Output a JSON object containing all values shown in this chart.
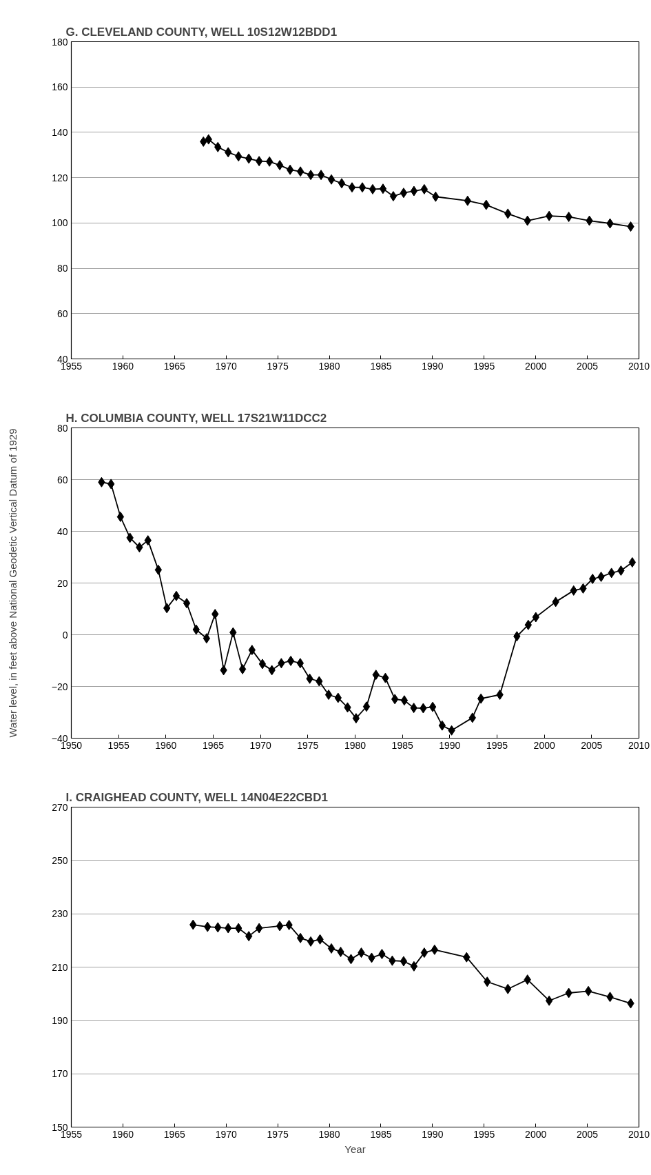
{
  "chart_data": [
    {
      "type": "line",
      "title": "G. CLEVELAND COUNTY, WELL 10S12W12BDD1",
      "marker": "diamond",
      "line_style": "solid",
      "grid": "y",
      "x": [
        1967.8,
        1968.3,
        1969.2,
        1970.2,
        1971.2,
        1972.2,
        1973.2,
        1974.2,
        1975.2,
        1976.2,
        1977.2,
        1978.2,
        1979.2,
        1980.2,
        1981.2,
        1982.2,
        1983.2,
        1984.2,
        1985.2,
        1986.2,
        1987.2,
        1988.2,
        1989.2,
        1990.3,
        1993.4,
        1995.2,
        1997.3,
        1999.2,
        2001.3,
        2003.2,
        2005.2,
        2007.2,
        2009.2
      ],
      "series": [
        {
          "color": "#000000",
          "values": [
            135.9,
            136.9,
            133.5,
            131.2,
            129.4,
            128.4,
            127.3,
            127.1,
            125.5,
            123.5,
            122.7,
            121.2,
            121.2,
            119.2,
            117.5,
            115.7,
            115.7,
            114.9,
            115.1,
            111.8,
            113.3,
            114.1,
            114.9,
            111.6,
            109.8,
            108.0,
            104.1,
            101.0,
            103.1,
            102.7,
            101.0,
            99.8,
            98.4
          ]
        }
      ],
      "xlim": [
        1955,
        2010
      ],
      "xticks": [
        1955,
        1960,
        1965,
        1970,
        1975,
        1980,
        1985,
        1990,
        1995,
        2000,
        2005,
        2010
      ],
      "ylim": [
        40,
        180
      ],
      "yticks": [
        40,
        60,
        80,
        100,
        120,
        140,
        160,
        180
      ]
    },
    {
      "type": "line",
      "title": "H. COLUMBIA COUNTY, WELL 17S21W11DCC2",
      "ylabel": "Water level, in feet above National Geodetic Vertical Datum of 1929",
      "marker": "diamond",
      "line_style": "solid",
      "grid": "y",
      "x": [
        1953.2,
        1954.2,
        1955.2,
        1956.2,
        1957.2,
        1958.1,
        1959.2,
        1960.1,
        1961.1,
        1962.2,
        1963.2,
        1964.3,
        1965.2,
        1966.1,
        1967.1,
        1968.1,
        1969.1,
        1970.2,
        1971.2,
        1972.2,
        1973.2,
        1974.2,
        1975.2,
        1976.2,
        1977.2,
        1978.2,
        1979.2,
        1980.1,
        1981.2,
        1982.2,
        1983.2,
        1984.2,
        1985.2,
        1986.2,
        1987.2,
        1988.2,
        1989.2,
        1990.2,
        1992.4,
        1993.3,
        1995.3,
        1997.1,
        1998.3,
        1999.1,
        2001.2,
        2003.1,
        2004.1,
        2005.1,
        2006.0,
        2007.1,
        2008.1,
        2009.3
      ],
      "series": [
        {
          "color": "#000000",
          "values": [
            59.0,
            58.3,
            45.6,
            37.5,
            33.8,
            36.5,
            25.1,
            10.3,
            15.0,
            12.2,
            2.0,
            -1.4,
            8.0,
            -13.7,
            0.9,
            -13.3,
            -5.9,
            -11.3,
            -13.7,
            -11.0,
            -10.1,
            -11.0,
            -17.0,
            -18.0,
            -23.2,
            -24.4,
            -28.1,
            -32.3,
            -27.8,
            -15.5,
            -16.7,
            -24.9,
            -25.4,
            -28.3,
            -28.4,
            -27.9,
            -35.1,
            -37.0,
            -32.1,
            -24.7,
            -23.2,
            -0.6,
            3.8,
            6.8,
            12.7,
            17.1,
            17.9,
            21.6,
            22.4,
            23.9,
            24.8,
            28.0
          ]
        }
      ],
      "xlim": [
        1950,
        2010
      ],
      "xticks": [
        1950,
        1955,
        1960,
        1965,
        1970,
        1975,
        1980,
        1985,
        1990,
        1995,
        2000,
        2005,
        2010
      ],
      "ylim": [
        -40,
        80
      ],
      "yticks": [
        -40,
        -20,
        0,
        20,
        40,
        60,
        80
      ]
    },
    {
      "type": "line",
      "title": "I.  CRAIGHEAD COUNTY, WELL 14N04E22CBD1",
      "xlabel": "Year",
      "marker": "diamond",
      "line_style": "solid",
      "grid": "y",
      "x": [
        1966.8,
        1968.2,
        1969.2,
        1970.2,
        1971.2,
        1972.2,
        1973.2,
        1975.2,
        1976.1,
        1977.2,
        1978.2,
        1979.1,
        1980.2,
        1981.1,
        1982.1,
        1983.1,
        1984.1,
        1985.1,
        1986.1,
        1987.2,
        1988.2,
        1989.2,
        1990.2,
        1993.3,
        1995.3,
        1997.3,
        1999.2,
        2001.3,
        2003.2,
        2005.1,
        2007.2,
        2009.2
      ],
      "series": [
        {
          "color": "#000000",
          "values": [
            225.9,
            225.1,
            224.9,
            224.6,
            224.6,
            221.6,
            224.6,
            225.4,
            225.8,
            220.9,
            219.6,
            220.4,
            217.0,
            215.7,
            213.0,
            215.4,
            213.5,
            214.9,
            212.4,
            212.2,
            210.3,
            215.4,
            216.5,
            213.7,
            204.5,
            201.8,
            205.3,
            197.4,
            200.3,
            201.0,
            198.8,
            196.4
          ]
        }
      ],
      "xlim": [
        1955,
        2010
      ],
      "xticks": [
        1955,
        1960,
        1965,
        1970,
        1975,
        1980,
        1985,
        1990,
        1995,
        2000,
        2005,
        2010
      ],
      "ylim": [
        150,
        270
      ],
      "yticks": [
        150,
        170,
        190,
        210,
        230,
        250,
        270
      ]
    }
  ]
}
